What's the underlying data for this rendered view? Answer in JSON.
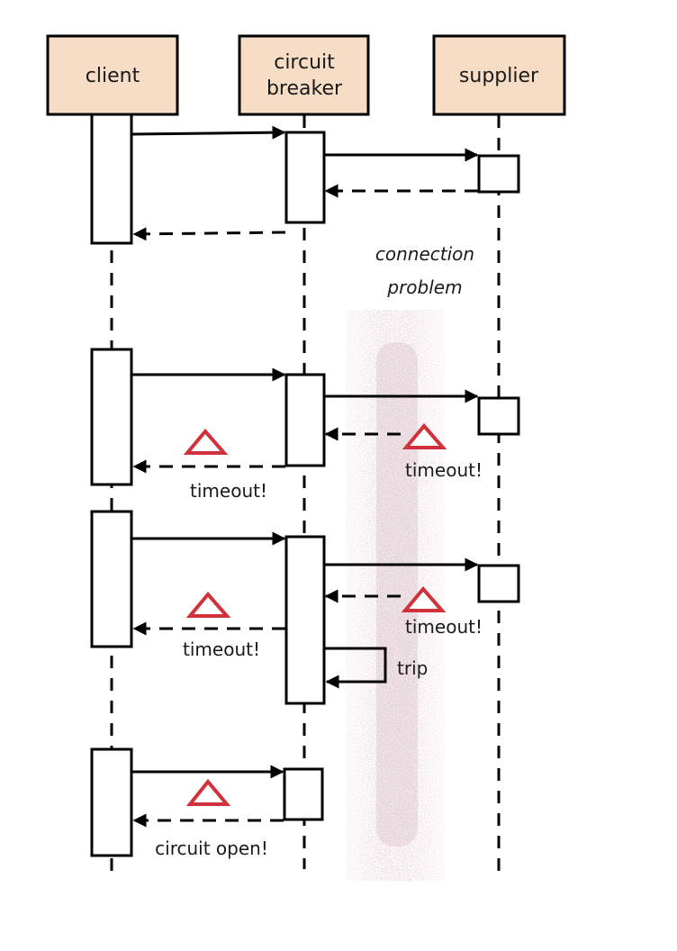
{
  "participants": [
    {
      "id": "client",
      "lines": [
        "client"
      ]
    },
    {
      "id": "breaker",
      "lines": [
        "circuit",
        "breaker"
      ]
    },
    {
      "id": "supplier",
      "lines": [
        "supplier"
      ]
    }
  ],
  "labels": {
    "connection_problem": [
      "connection",
      "problem"
    ],
    "timeout_1": "timeout!",
    "timeout_2": "timeout!",
    "timeout_3": "timeout!",
    "timeout_4": "timeout!",
    "trip": "trip",
    "circuit_open": "circuit open!"
  },
  "colors": {
    "header_fill": "#f7dcc6",
    "line": "#000000",
    "warning": "#d0313b",
    "noise_band": "#c6a3ae"
  }
}
